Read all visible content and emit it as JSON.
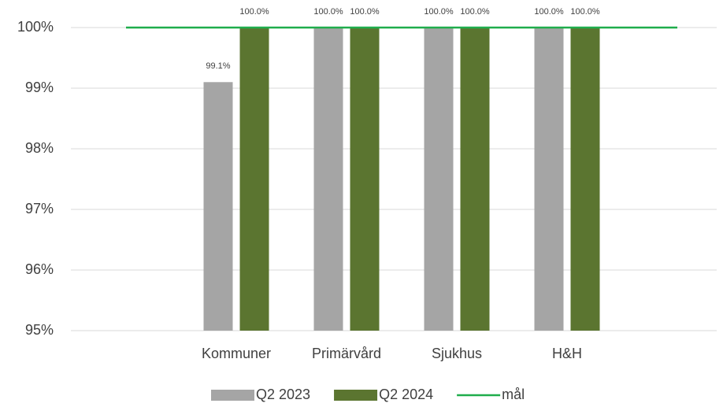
{
  "chart_data": {
    "type": "bar",
    "categories": [
      null,
      "Kommuner",
      "Primärvård",
      "Sjukhus",
      "H&H",
      null
    ],
    "series": [
      {
        "name": "Q2 2023",
        "color": "#a5a5a5",
        "values": [
          null,
          99.1,
          100,
          100,
          100,
          null
        ],
        "value_labels": [
          null,
          "99.1%",
          "100.0%",
          "100.0%",
          "100.0%",
          null
        ]
      },
      {
        "name": "Q2 2024",
        "color": "#5b7530",
        "values": [
          null,
          100,
          100,
          100,
          100,
          null
        ],
        "value_labels": [
          null,
          "100.0%",
          "100.0%",
          "100.0%",
          "100.0%",
          null
        ]
      },
      {
        "name": "mål",
        "type": "line",
        "color": "#1fad4b",
        "values": [
          100,
          100,
          100,
          100,
          100,
          100
        ]
      }
    ],
    "ylim": [
      95,
      100
    ],
    "yticks": [
      {
        "value": 95,
        "label": "95%"
      },
      {
        "value": 96,
        "label": "96%"
      },
      {
        "value": 97,
        "label": "97%"
      },
      {
        "value": 98,
        "label": "98%"
      },
      {
        "value": 99,
        "label": "99%"
      },
      {
        "value": 100,
        "label": "100%"
      }
    ],
    "grid": true,
    "legend": "bottom"
  }
}
